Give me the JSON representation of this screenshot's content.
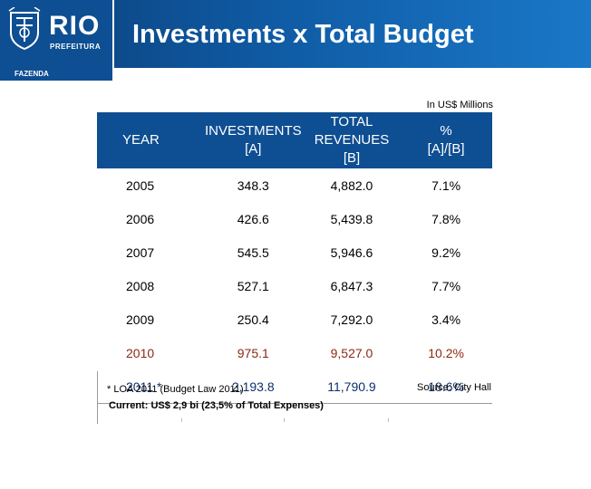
{
  "header": {
    "logo_text": "RIO",
    "logo_subtext": "PREFEITURA",
    "department": "FAZENDA",
    "title": "Investments x Total Budget",
    "brand_color": "#0e4e92"
  },
  "units_note": "In US$ Millions",
  "table": {
    "columns": [
      {
        "line1": "YEAR",
        "line2": "",
        "line3": ""
      },
      {
        "line1": "INVESTMENTS",
        "line2": "[A]",
        "line3": ""
      },
      {
        "line1": "TOTAL",
        "line2": "REVENUES",
        "line3": "[B]"
      },
      {
        "line1": "%",
        "line2": "[A]/[B]",
        "line3": ""
      }
    ],
    "rows": [
      {
        "year": "2005",
        "investments": "348.3",
        "revenues": "4,882.0",
        "pct": "7.1%",
        "color": "#000000"
      },
      {
        "year": "2006",
        "investments": "426.6",
        "revenues": "5,439.8",
        "pct": "7.8%",
        "color": "#000000"
      },
      {
        "year": "2007",
        "investments": "545.5",
        "revenues": "5,946.6",
        "pct": "9.2%",
        "color": "#000000"
      },
      {
        "year": "2008",
        "investments": "527.1",
        "revenues": "6,847.3",
        "pct": "7.7%",
        "color": "#000000"
      },
      {
        "year": "2009",
        "investments": "250.4",
        "revenues": "7,292.0",
        "pct": "3.4%",
        "color": "#000000"
      },
      {
        "year": "2010",
        "investments": "975.1",
        "revenues": "9,527.0",
        "pct": "10.2%",
        "color": "#8b2a14"
      },
      {
        "year": "2011 *",
        "investments": "2,193.8",
        "revenues": "11,790.9",
        "pct": "18.6%",
        "color": "#0d2f6e"
      }
    ]
  },
  "footnote": "* LOA 2011  (Budget Law 2011)",
  "current_note": "Current: US$ 2,9 bi (23,5% of Total Expenses)",
  "source": "Source: City Hall"
}
